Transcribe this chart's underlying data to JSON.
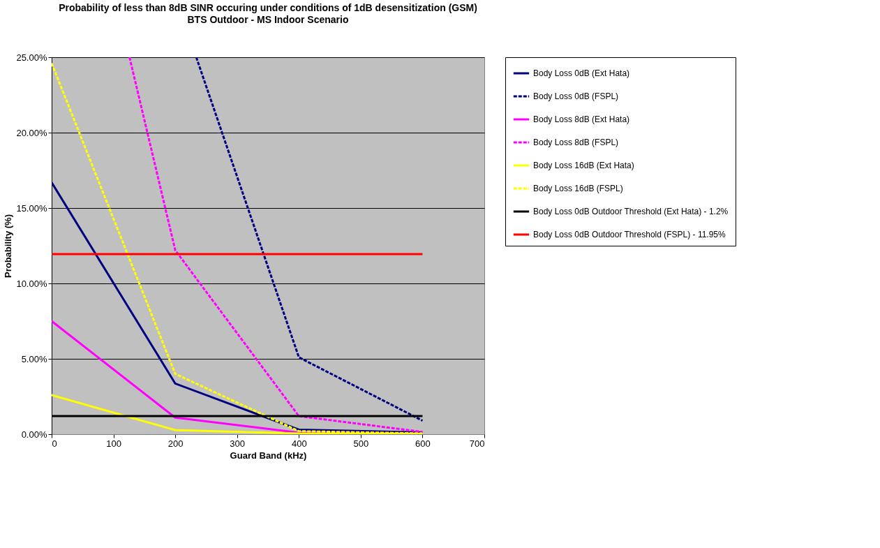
{
  "chart_data": {
    "type": "line",
    "title": "Probability of less than 8dB SINR occuring under conditions of 1dB desensitization (GSM)",
    "subtitle": "BTS Outdoor - MS Indoor Scenario",
    "xlabel": "Guard Band (kHz)",
    "ylabel": "Probability (%)",
    "x": [
      0,
      200,
      400,
      600
    ],
    "series": [
      {
        "name": "Body Loss 0dB (Ext Hata)",
        "color": "#000080",
        "line_style": "solid",
        "values": [
          16.7,
          3.36,
          0.3,
          0.12
        ]
      },
      {
        "name": "Body Loss 0dB (FSPL)",
        "color": "#000080",
        "line_style": "dashed",
        "x": [
          234,
          400,
          600
        ],
        "values": [
          25,
          5.1,
          0.9
        ]
      },
      {
        "name": "Body Loss 8dB (Ext Hata)",
        "color": "#ff00ff",
        "line_style": "solid",
        "values": [
          7.5,
          1.1,
          0.1,
          0.05
        ]
      },
      {
        "name": "Body Loss 8dB (FSPL)",
        "color": "#ff00ff",
        "line_style": "dashed",
        "x": [
          126,
          200,
          400,
          600
        ],
        "values": [
          25,
          12.2,
          1.2,
          0.15
        ]
      },
      {
        "name": "Body Loss 16dB (Ext Hata)",
        "color": "#ffff00",
        "line_style": "solid",
        "values": [
          2.6,
          0.27,
          0.05,
          0.02
        ]
      },
      {
        "name": "Body Loss 16dB (FSPL)",
        "color": "#ffff00",
        "line_style": "dashed",
        "values": [
          24.6,
          4.0,
          0.2,
          0.05
        ]
      },
      {
        "name": "Body Loss 0dB Outdoor Threshold (Ext Hata) - 1.2%",
        "color": "#000000",
        "line_style": "solid",
        "x": [
          0,
          600
        ],
        "values": [
          1.2,
          1.2
        ]
      },
      {
        "name": "Body Loss 0dB Outdoor Threshold (FSPL) - 11.95%",
        "color": "#ff0000",
        "line_style": "solid",
        "x": [
          0,
          600
        ],
        "values": [
          11.95,
          11.95
        ]
      }
    ],
    "xlim": [
      0,
      700
    ],
    "xticks": [
      0,
      100,
      200,
      300,
      400,
      500,
      600,
      700
    ],
    "ylim": [
      0,
      25
    ],
    "yticks": [
      {
        "value": 0,
        "label": "0.00%"
      },
      {
        "value": 5,
        "label": "5.00%"
      },
      {
        "value": 10,
        "label": "10.00%"
      },
      {
        "value": 15,
        "label": "15.00%"
      },
      {
        "value": 20,
        "label": "20.00%"
      },
      {
        "value": 25,
        "label": "25.00%"
      }
    ],
    "grid": "y",
    "legend": "right"
  }
}
